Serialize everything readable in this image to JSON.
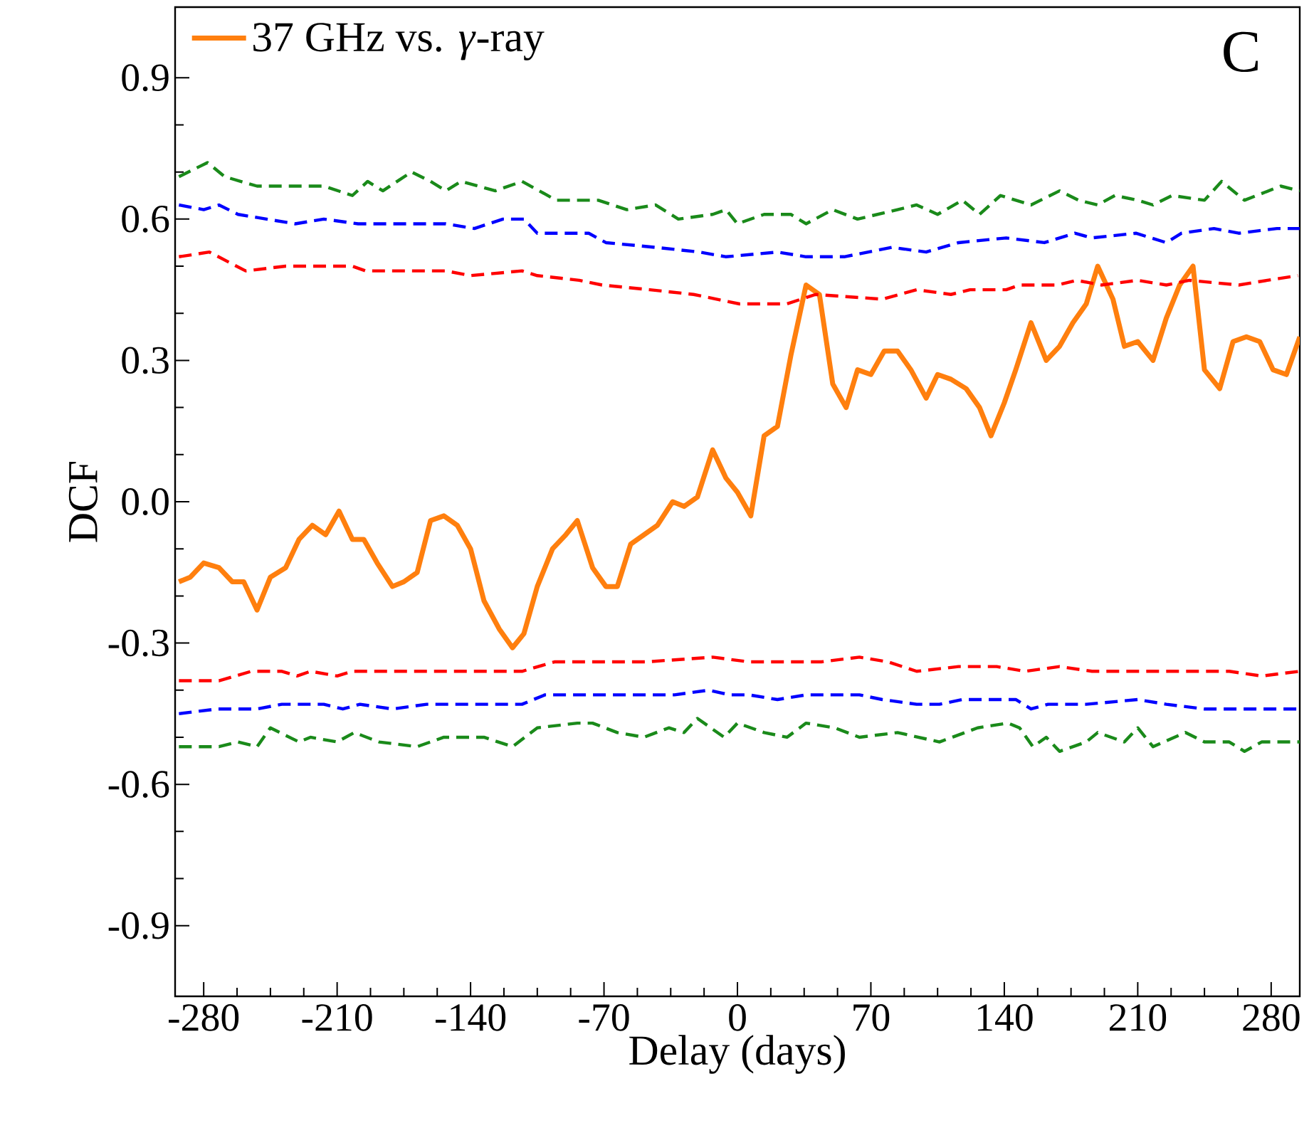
{
  "chart_data": {
    "type": "line",
    "xlabel": "Delay (days)",
    "ylabel": "DCF",
    "annotations": [
      "C"
    ],
    "xlim": [
      -295,
      295
    ],
    "ylim": [
      -1.05,
      1.05
    ],
    "xticks": [
      -280,
      -210,
      -140,
      -70,
      0,
      70,
      140,
      210,
      280
    ],
    "yticks": [
      -0.9,
      -0.6,
      -0.3,
      {
        "value": 0,
        "label": "0.0"
      },
      0.3,
      0.6,
      0.9
    ],
    "grid": false,
    "legend": "top left",
    "marker": "none",
    "series": [
      {
        "name": "37 GHz vs. *γ*-ray",
        "color": "#ff7f0e",
        "line_style": "solid",
        "x": [
          -293,
          -287,
          -280,
          -272,
          -265,
          -259,
          -252,
          -245,
          -237,
          -230,
          -223,
          -216,
          -209,
          -202,
          -196,
          -189,
          -181,
          -175,
          -168,
          -161,
          -154,
          -147,
          -140,
          -133,
          -125,
          -118,
          -112,
          -105,
          -97,
          -90,
          -84,
          -76,
          -69,
          -63,
          -56,
          -49,
          -42,
          -34,
          -28,
          -21,
          -13,
          -6,
          0,
          7,
          14,
          21,
          28,
          36,
          43,
          50,
          57,
          63,
          70,
          77,
          84,
          91,
          99,
          105,
          112,
          120,
          127,
          133,
          140,
          146,
          154,
          162,
          169,
          176,
          183,
          189,
          197,
          203,
          210,
          218,
          225,
          232,
          239,
          245,
          253,
          260,
          267,
          274,
          281,
          288,
          295
        ],
        "values": [
          -0.17,
          -0.16,
          -0.13,
          -0.14,
          -0.17,
          -0.17,
          -0.23,
          -0.16,
          -0.14,
          -0.08,
          -0.05,
          -0.07,
          -0.02,
          -0.08,
          -0.08,
          -0.13,
          -0.18,
          -0.17,
          -0.15,
          -0.04,
          -0.03,
          -0.05,
          -0.1,
          -0.21,
          -0.27,
          -0.31,
          -0.28,
          -0.18,
          -0.1,
          -0.07,
          -0.04,
          -0.14,
          -0.18,
          -0.18,
          -0.09,
          -0.07,
          -0.05,
          0.0,
          -0.01,
          0.01,
          0.11,
          0.05,
          0.02,
          -0.03,
          0.14,
          0.16,
          0.31,
          0.46,
          0.44,
          0.25,
          0.2,
          0.28,
          0.27,
          0.32,
          0.32,
          0.28,
          0.22,
          0.27,
          0.26,
          0.24,
          0.2,
          0.14,
          0.21,
          0.28,
          0.38,
          0.3,
          0.33,
          0.38,
          0.42,
          0.5,
          0.43,
          0.33,
          0.34,
          0.3,
          0.39,
          0.46,
          0.5,
          0.28,
          0.24,
          0.34,
          0.35,
          0.34,
          0.28,
          0.27,
          0.35
        ]
      },
      {
        "color": "#1a8a1a",
        "line_style": "dashed",
        "x": [
          -293,
          -278,
          -269,
          -252,
          -230,
          -217,
          -202,
          -194,
          -186,
          -171,
          -161,
          -153,
          -145,
          -127,
          -113,
          -95,
          -73,
          -58,
          -43,
          -31,
          -13,
          -6,
          0,
          14,
          28,
          36,
          50,
          63,
          84,
          94,
          105,
          118,
          127,
          138,
          154,
          169,
          179,
          189,
          198,
          210,
          218,
          228,
          245,
          254,
          266,
          285,
          295
        ],
        "values": [
          0.69,
          0.72,
          0.69,
          0.67,
          0.67,
          0.67,
          0.65,
          0.68,
          0.66,
          0.7,
          0.68,
          0.66,
          0.68,
          0.66,
          0.68,
          0.64,
          0.64,
          0.62,
          0.63,
          0.6,
          0.61,
          0.62,
          0.59,
          0.61,
          0.61,
          0.59,
          0.62,
          0.6,
          0.62,
          0.63,
          0.61,
          0.64,
          0.61,
          0.65,
          0.63,
          0.66,
          0.64,
          0.63,
          0.65,
          0.64,
          0.63,
          0.65,
          0.64,
          0.68,
          0.64,
          0.67,
          0.66
        ]
      },
      {
        "color": "#0000ff",
        "line_style": "dashed",
        "x": [
          -293,
          -280,
          -272,
          -262,
          -232,
          -217,
          -199,
          -180,
          -153,
          -138,
          -123,
          -112,
          -105,
          -78,
          -69,
          -43,
          -20,
          -6,
          21,
          36,
          56,
          81,
          99,
          116,
          141,
          161,
          177,
          186,
          209,
          225,
          233,
          250,
          263,
          283,
          295
        ],
        "values": [
          0.63,
          0.62,
          0.63,
          0.61,
          0.59,
          0.6,
          0.59,
          0.59,
          0.59,
          0.58,
          0.6,
          0.6,
          0.57,
          0.57,
          0.55,
          0.54,
          0.53,
          0.52,
          0.53,
          0.52,
          0.52,
          0.54,
          0.53,
          0.55,
          0.56,
          0.55,
          0.57,
          0.56,
          0.57,
          0.55,
          0.57,
          0.58,
          0.57,
          0.58,
          0.58
        ]
      },
      {
        "color": "#ff0000",
        "line_style": "dashed",
        "x": [
          -293,
          -277,
          -258,
          -237,
          -210,
          -202,
          -195,
          -174,
          -153,
          -140,
          -113,
          -105,
          -83,
          -71,
          -46,
          -23,
          1,
          26,
          41,
          76,
          94,
          112,
          122,
          141,
          148,
          168,
          178,
          191,
          210,
          225,
          237,
          263,
          278,
          294
        ],
        "values": [
          0.52,
          0.53,
          0.49,
          0.5,
          0.5,
          0.5,
          0.49,
          0.49,
          0.49,
          0.48,
          0.49,
          0.48,
          0.47,
          0.46,
          0.45,
          0.44,
          0.42,
          0.42,
          0.44,
          0.43,
          0.45,
          0.44,
          0.45,
          0.45,
          0.46,
          0.46,
          0.47,
          0.46,
          0.47,
          0.46,
          0.47,
          0.46,
          0.47,
          0.48
        ]
      },
      {
        "color": "#ff0000",
        "line_style": "dashed",
        "x": [
          -293,
          -272,
          -255,
          -239,
          -231,
          -224,
          -210,
          -202,
          -173,
          -133,
          -113,
          -96,
          -73,
          -48,
          -13,
          6,
          26,
          44,
          64,
          79,
          94,
          116,
          136,
          151,
          169,
          186,
          203,
          223,
          238,
          258,
          275,
          295
        ],
        "values": [
          -0.38,
          -0.38,
          -0.36,
          -0.36,
          -0.37,
          -0.36,
          -0.37,
          -0.36,
          -0.36,
          -0.36,
          -0.36,
          -0.34,
          -0.34,
          -0.34,
          -0.33,
          -0.34,
          -0.34,
          -0.34,
          -0.33,
          -0.34,
          -0.36,
          -0.35,
          -0.35,
          -0.36,
          -0.35,
          -0.36,
          -0.36,
          -0.36,
          -0.36,
          -0.36,
          -0.37,
          -0.36
        ]
      },
      {
        "color": "#0000ff",
        "line_style": "dashed",
        "x": [
          -293,
          -273,
          -266,
          -252,
          -239,
          -230,
          -217,
          -207,
          -198,
          -181,
          -163,
          -153,
          -138,
          -113,
          -101,
          -91,
          -78,
          -68,
          -48,
          -33,
          -15,
          -4,
          6,
          21,
          36,
          64,
          76,
          94,
          106,
          118,
          136,
          146,
          154,
          163,
          183,
          210,
          225,
          245,
          273,
          295
        ],
        "values": [
          -0.45,
          -0.44,
          -0.44,
          -0.44,
          -0.43,
          -0.43,
          -0.43,
          -0.44,
          -0.43,
          -0.44,
          -0.43,
          -0.43,
          -0.43,
          -0.43,
          -0.41,
          -0.41,
          -0.41,
          -0.41,
          -0.41,
          -0.41,
          -0.4,
          -0.41,
          -0.41,
          -0.42,
          -0.41,
          -0.41,
          -0.42,
          -0.43,
          -0.43,
          -0.42,
          -0.42,
          -0.42,
          -0.44,
          -0.43,
          -0.43,
          -0.42,
          -0.43,
          -0.44,
          -0.44,
          -0.44
        ]
      },
      {
        "color": "#1a8a1a",
        "line_style": "dashed",
        "x": [
          -293,
          -285,
          -272,
          -262,
          -252,
          -245,
          -230,
          -224,
          -210,
          -201,
          -188,
          -168,
          -154,
          -133,
          -118,
          -105,
          -84,
          -76,
          -63,
          -49,
          -36,
          -28,
          -21,
          -7,
          0,
          14,
          26,
          36,
          51,
          64,
          84,
          106,
          126,
          142,
          148,
          155,
          162,
          169,
          183,
          189,
          203,
          210,
          218,
          235,
          245,
          258,
          266,
          275,
          295
        ],
        "values": [
          -0.52,
          -0.52,
          -0.52,
          -0.51,
          -0.52,
          -0.48,
          -0.51,
          -0.5,
          -0.51,
          -0.49,
          -0.51,
          -0.52,
          -0.5,
          -0.5,
          -0.52,
          -0.48,
          -0.47,
          -0.47,
          -0.49,
          -0.5,
          -0.48,
          -0.49,
          -0.46,
          -0.5,
          -0.47,
          -0.49,
          -0.5,
          -0.47,
          -0.48,
          -0.5,
          -0.49,
          -0.51,
          -0.48,
          -0.47,
          -0.48,
          -0.52,
          -0.5,
          -0.53,
          -0.51,
          -0.49,
          -0.51,
          -0.48,
          -0.52,
          -0.49,
          -0.51,
          -0.51,
          -0.53,
          -0.51,
          -0.51
        ]
      }
    ]
  }
}
